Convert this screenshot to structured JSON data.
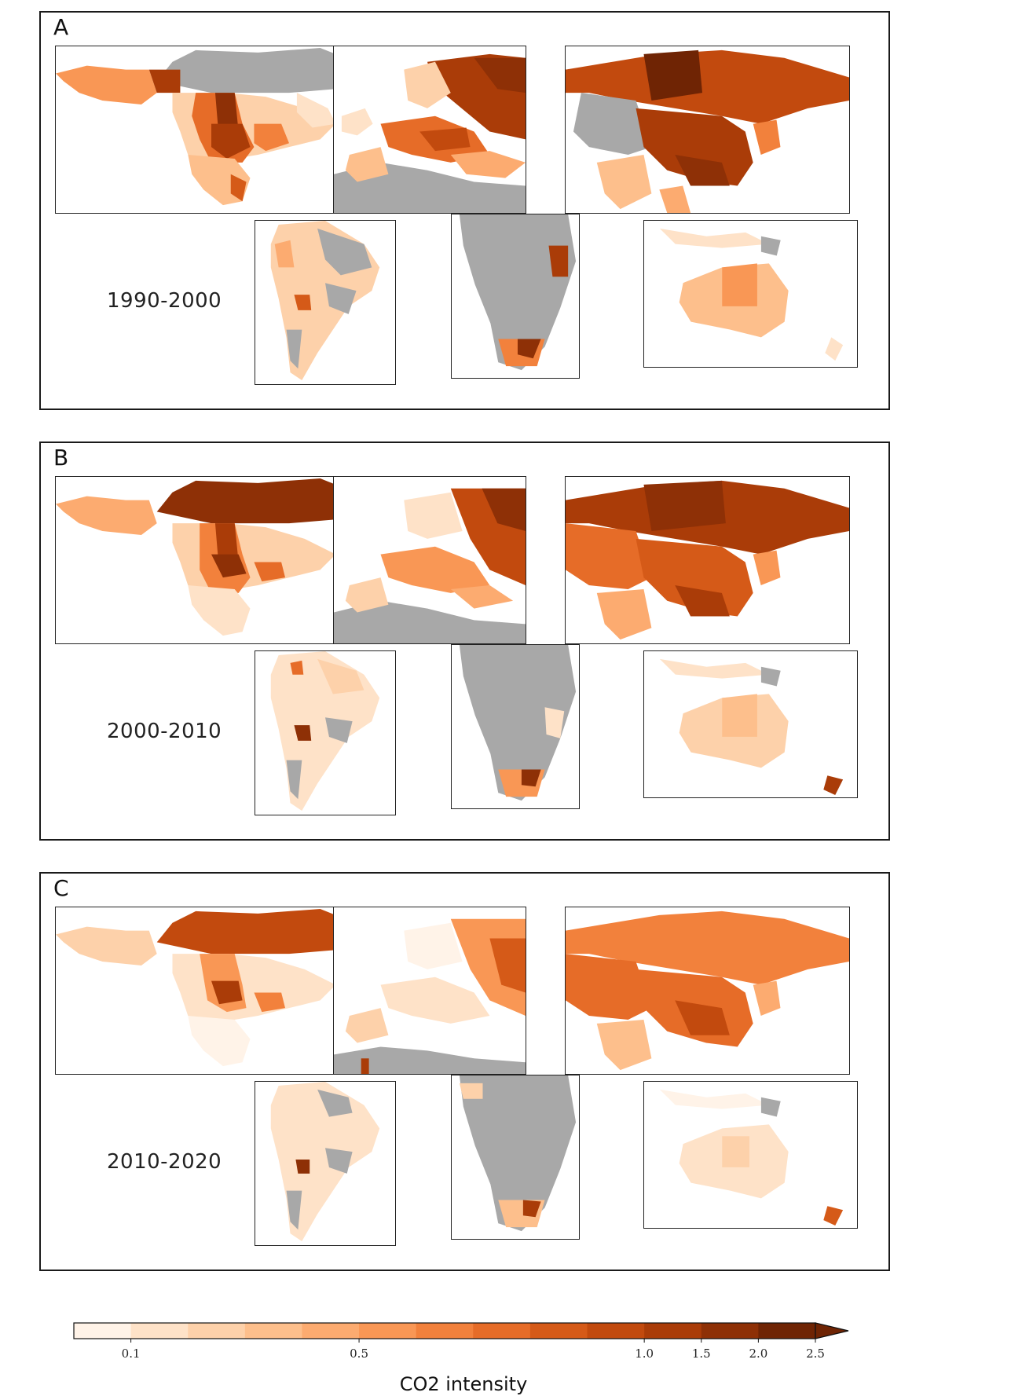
{
  "panels": [
    {
      "letter": "A",
      "period": "1990-2000"
    },
    {
      "letter": "B",
      "period": "2000-2010"
    },
    {
      "letter": "C",
      "period": "2010-2020"
    }
  ],
  "regions": [
    "north-america",
    "europe",
    "asia",
    "south-america",
    "southern-africa",
    "oceania"
  ],
  "colorbar": {
    "label": "CO2 intensity",
    "tick_labels": [
      "0.1",
      "0.5",
      "1.0",
      "1.5",
      "2.0",
      "2.5"
    ],
    "bins": [
      "#fff3e8",
      "#fee2c8",
      "#fdd1aa",
      "#fdbf8c",
      "#fcab70",
      "#f99755",
      "#f2813c",
      "#e66c28",
      "#d55a18",
      "#c24a0e",
      "#aa3c08",
      "#8e3006",
      "#6f2404"
    ],
    "extend": "max"
  },
  "colors": {
    "no_data": "#a8a8a8",
    "border": "#1a1a1a"
  }
}
